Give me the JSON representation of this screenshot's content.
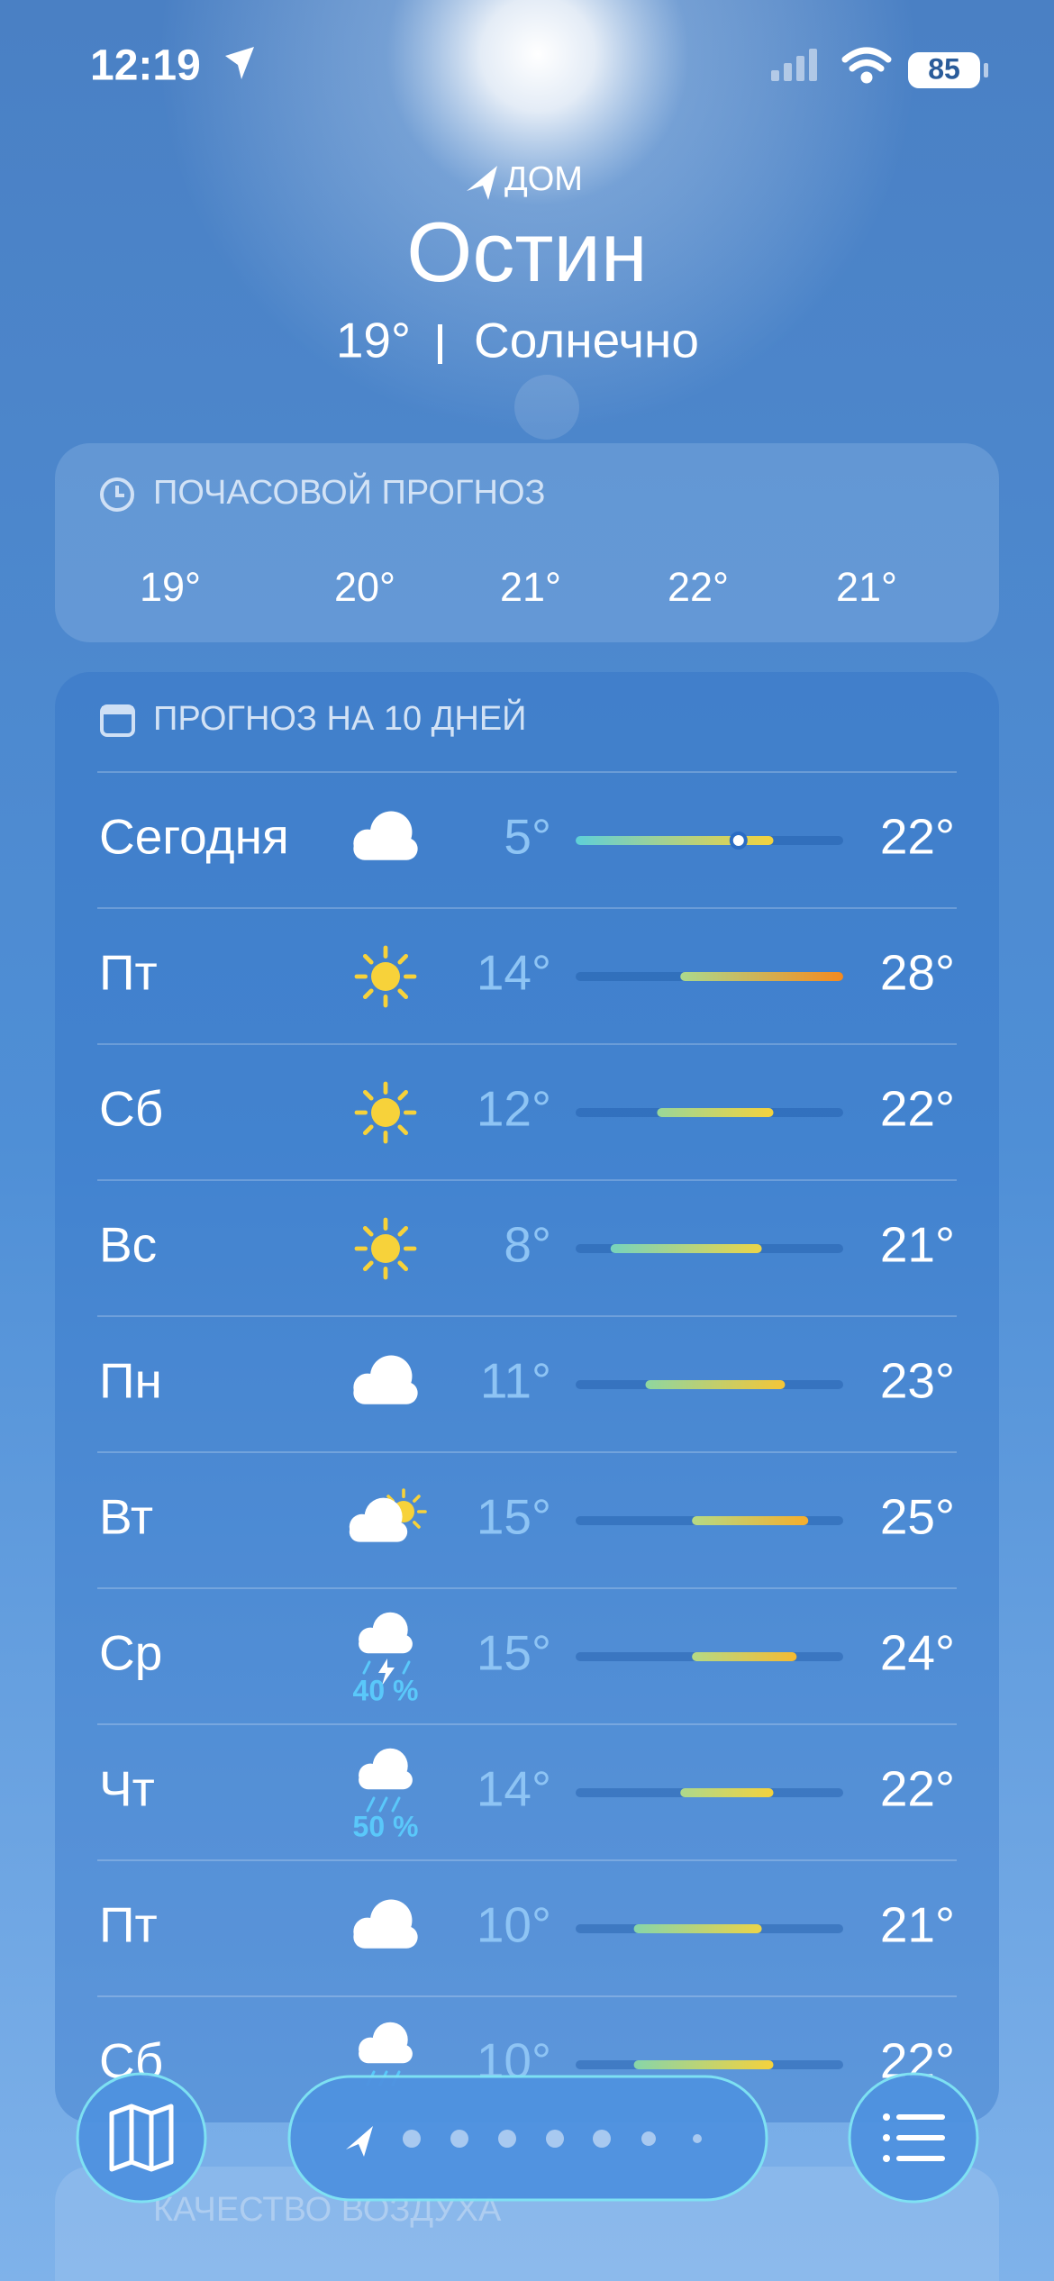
{
  "status_bar": {
    "time": "12:19",
    "battery": "85"
  },
  "location": {
    "label": "ДОМ",
    "city": "Остин",
    "temperature": "19°",
    "condition": "Солнечно"
  },
  "hourly": {
    "title": "ПОЧАСОВОЙ ПРОГНОЗ",
    "temperatures": [
      "19°",
      "20°",
      "21°",
      "22°",
      "21°"
    ]
  },
  "daily": {
    "title": "ПРОГНОЗ НА 10 ДНЕЙ",
    "days": [
      {
        "day": "Сегодня",
        "icon": "cloud",
        "low": "5°",
        "high": "22°"
      },
      {
        "day": "Пт",
        "icon": "sun",
        "low": "14°",
        "high": "28°"
      },
      {
        "day": "Сб",
        "icon": "sun",
        "low": "12°",
        "high": "22°"
      },
      {
        "day": "Вс",
        "icon": "sun",
        "low": "8°",
        "high": "21°"
      },
      {
        "day": "Пн",
        "icon": "cloud",
        "low": "11°",
        "high": "23°"
      },
      {
        "day": "Вт",
        "icon": "partly",
        "low": "15°",
        "high": "25°"
      },
      {
        "day": "Ср",
        "icon": "storm",
        "low": "15°",
        "high": "24°",
        "precip": "40 %"
      },
      {
        "day": "Чт",
        "icon": "rain",
        "low": "14°",
        "high": "22°",
        "precip": "50 %"
      },
      {
        "day": "Пт",
        "icon": "cloud",
        "low": "10°",
        "high": "21°"
      },
      {
        "day": "Сб",
        "icon": "rain",
        "low": "10°",
        "high": "22°"
      }
    ]
  },
  "air_quality": {
    "title": "КАЧЕСТВО ВОЗДУХА"
  }
}
